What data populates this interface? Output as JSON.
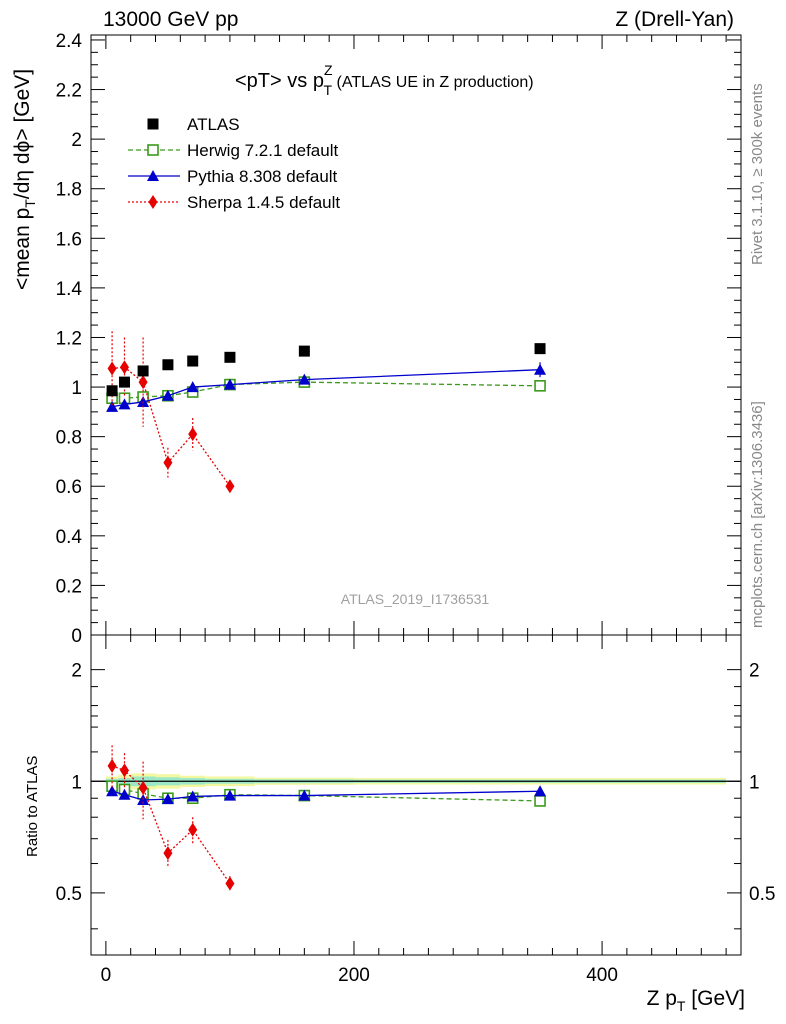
{
  "header": {
    "left": "13000 GeV pp",
    "right": "Z (Drell-Yan)"
  },
  "side_labels": {
    "top": "Rivet 3.1.10, ≥ 300k events",
    "bottom": "mcplots.cern.ch [arXiv:1306.3436]"
  },
  "analysis_id": "ATLAS_2019_I1736531",
  "colors": {
    "atlas": "#000000",
    "herwig": "#3a9a1a",
    "pythia": "#0000cc",
    "sherpa": "#e60000",
    "band_inner": "#9be8c8",
    "band_outer": "#f2f7a0"
  },
  "chart_data": {
    "type": "scatter",
    "title_main": "<pT> vs p",
    "title_sup": "Z",
    "title_sub": "T",
    "title_suffix": " (ATLAS UE in Z production)",
    "xlabel_main": "Z p",
    "xlabel_sub": "T",
    "xlabel_suffix": " [GeV]",
    "ylabel_main": "<mean p",
    "ylabel_sub": "T",
    "ylabel_suffix": "/dη dϕ> [GeV]",
    "ratio_ylabel": "Ratio to ATLAS",
    "xlim": [
      -12,
      512
    ],
    "ylim": [
      0,
      2.42
    ],
    "ratio_ylim": [
      0.34,
      2.48
    ],
    "x_ticks": [
      0,
      200,
      400
    ],
    "x_tick_labels": [
      "0",
      "200",
      "400"
    ],
    "y_ticks": [
      0,
      0.2,
      0.4,
      0.6,
      0.8,
      1,
      1.2,
      1.4,
      1.6,
      1.8,
      2,
      2.2,
      2.4
    ],
    "y_tick_labels": [
      "0",
      "0.2",
      "0.4",
      "0.6",
      "0.8",
      "1",
      "1.2",
      "1.4",
      "1.6",
      "1.8",
      "2",
      "2.2",
      "2.4"
    ],
    "ratio_ticks": [
      0.5,
      1,
      2
    ],
    "ratio_tick_labels": [
      "0.5",
      "1",
      "2"
    ],
    "legend": {
      "position": "top-left",
      "entries": [
        "ATLAS",
        "Herwig 7.2.1 default",
        "Pythia 8.308 default",
        "Sherpa 1.4.5 default"
      ]
    },
    "reference_band": {
      "x": [
        0,
        10,
        20,
        40,
        60,
        80,
        120,
        200,
        500
      ],
      "inner": [
        0.015,
        0.02,
        0.03,
        0.025,
        0.02,
        0.015,
        0.012,
        0.01
      ],
      "outer": [
        0.03,
        0.04,
        0.05,
        0.045,
        0.035,
        0.03,
        0.022,
        0.02
      ]
    },
    "series": [
      {
        "name": "ATLAS",
        "x": [
          5,
          15,
          30,
          50,
          70,
          100,
          160,
          350
        ],
        "y": [
          0.985,
          1.02,
          1.065,
          1.09,
          1.105,
          1.12,
          1.145,
          1.155
        ],
        "yerr": [
          0.01,
          0.01,
          0.01,
          0.01,
          0.01,
          0.01,
          0.01,
          0.012
        ],
        "ratio": [
          1,
          1,
          1,
          1,
          1,
          1,
          1,
          1
        ],
        "ratio_err": [
          0,
          0,
          0,
          0,
          0,
          0,
          0,
          0
        ]
      },
      {
        "name": "Herwig 7.2.1 default",
        "x": [
          5,
          15,
          30,
          50,
          70,
          100,
          160,
          350
        ],
        "y": [
          0.955,
          0.955,
          0.96,
          0.965,
          0.98,
          1.01,
          1.02,
          1.005
        ],
        "yerr": [
          0.01,
          0.01,
          0.01,
          0.01,
          0.01,
          0.01,
          0.01,
          0.012
        ],
        "ratio": [
          0.97,
          0.95,
          0.925,
          0.9,
          0.9,
          0.92,
          0.915,
          0.885
        ],
        "ratio_err": [
          0.01,
          0.01,
          0.01,
          0.01,
          0.01,
          0.01,
          0.01,
          0.012
        ]
      },
      {
        "name": "Pythia 8.308 default",
        "x": [
          5,
          15,
          30,
          50,
          70,
          100,
          160,
          350
        ],
        "y": [
          0.92,
          0.93,
          0.94,
          0.965,
          1.0,
          1.01,
          1.03,
          1.07
        ],
        "yerr": [
          0.01,
          0.01,
          0.01,
          0.01,
          0.01,
          0.01,
          0.012,
          0.03
        ],
        "ratio": [
          0.94,
          0.92,
          0.89,
          0.895,
          0.91,
          0.915,
          0.915,
          0.94
        ],
        "ratio_err": [
          0.01,
          0.01,
          0.01,
          0.01,
          0.01,
          0.01,
          0.01,
          0.02
        ]
      },
      {
        "name": "Sherpa 1.4.5 default",
        "x": [
          5,
          15,
          30,
          50,
          70,
          100
        ],
        "y": [
          1.075,
          1.08,
          1.02,
          0.695,
          0.81,
          0.6
        ],
        "yerr": [
          0.15,
          0.12,
          0.18,
          0.06,
          0.065,
          0.025
        ],
        "ratio": [
          1.1,
          1.07,
          0.96,
          0.64,
          0.74,
          0.53
        ],
        "ratio_err": [
          0.15,
          0.12,
          0.17,
          0.055,
          0.06,
          0.025
        ]
      }
    ]
  }
}
